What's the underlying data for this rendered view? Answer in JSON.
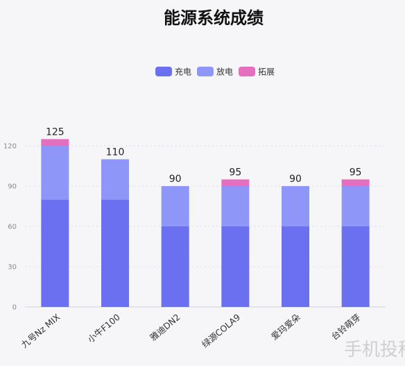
{
  "chart_data": {
    "type": "bar",
    "stacked": true,
    "title": "能源系统成绩",
    "categories": [
      "九号Nz MIX",
      "小牛F100",
      "雅迪DN2",
      "绿源COLA9",
      "爱玛爱朵",
      "台铃萌芽"
    ],
    "series": [
      {
        "name": "充电",
        "color": "#6a70f0",
        "values": [
          80,
          80,
          60,
          60,
          60,
          60
        ]
      },
      {
        "name": "放电",
        "color": "#8e96f8",
        "values": [
          40,
          30,
          30,
          30,
          30,
          30
        ]
      },
      {
        "name": "拓展",
        "color": "#e36fbe",
        "values": [
          5,
          0,
          0,
          5,
          0,
          5
        ]
      }
    ],
    "totals": [
      125,
      110,
      90,
      95,
      90,
      95
    ],
    "ylim": [
      0,
      120
    ],
    "yticks": [
      0,
      30,
      60,
      90,
      120
    ],
    "legend_position": "top-center",
    "grid": true
  },
  "watermark": "手机投稿"
}
